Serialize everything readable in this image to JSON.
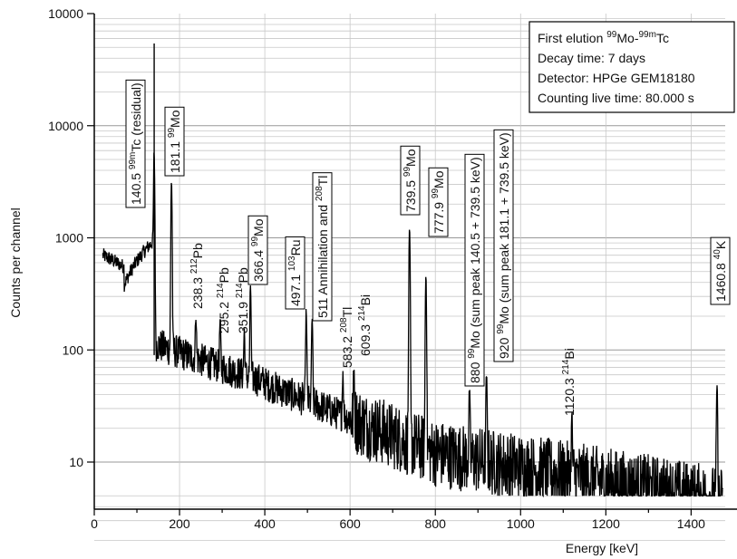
{
  "chart_data": {
    "type": "line",
    "title": "",
    "xlabel": "Energy [keV]",
    "ylabel": "Counts per channel",
    "xlim": [
      0,
      1480
    ],
    "ylim": [
      5,
      10000
    ],
    "y_scale": "log",
    "grid": true,
    "x_ticks": [
      "0",
      "200",
      "400",
      "600",
      "800",
      "1000",
      "1200",
      "1400"
    ],
    "y_ticks": [
      "10000",
      "10000",
      "1000",
      "100",
      "10"
    ],
    "info_box": {
      "position": "top-right",
      "lines": [
        {
          "main": "First elution ",
          "sup1": "99",
          "mid": "Mo-",
          "sup2": "99m",
          "end": "Tc"
        },
        {
          "main": "Decay time: 7 days"
        },
        {
          "main": "Detector: HPGe GEM18180"
        },
        {
          "main": "Counting live time: 80.000 s"
        }
      ]
    },
    "peaks": [
      {
        "energy": 140.5,
        "counts": 5200,
        "label": "140.5 ",
        "sup": "99m",
        "nuclide": "Tc (residual)",
        "boxed": true
      },
      {
        "energy": 181.1,
        "counts": 3100,
        "label": "181.1 ",
        "sup": "99",
        "nuclide": "Mo",
        "boxed": true
      },
      {
        "energy": 238.3,
        "counts": 125,
        "label": "238.3 ",
        "sup": "212",
        "nuclide": "Pb",
        "boxed": false
      },
      {
        "energy": 295.2,
        "counts": 110,
        "label": "295.2 ",
        "sup": "214",
        "nuclide": "Pb",
        "boxed": false
      },
      {
        "energy": 351.9,
        "counts": 90,
        "label": "351.9 ",
        "sup": "214",
        "nuclide": "Pb",
        "boxed": false
      },
      {
        "energy": 366.4,
        "counts": 320,
        "label": "366.4 ",
        "sup": "99",
        "nuclide": "Mo",
        "boxed": true
      },
      {
        "energy": 497.1,
        "counts": 190,
        "label": "497.1 ",
        "sup": "103",
        "nuclide": "Ru",
        "boxed": true
      },
      {
        "energy": 511,
        "counts": 160,
        "label": "511 Annihilation and ",
        "sup": "208",
        "nuclide": "Tl",
        "boxed": true
      },
      {
        "energy": 583.2,
        "counts": 38,
        "label": "583.2 ",
        "sup": "208",
        "nuclide": "Tl",
        "boxed": false
      },
      {
        "energy": 609.3,
        "counts": 42,
        "label": "609.3 ",
        "sup": "214",
        "nuclide": "Bi",
        "boxed": false
      },
      {
        "energy": 739.5,
        "counts": 1200,
        "label": "739.5 ",
        "sup": "99",
        "nuclide": "Mo",
        "boxed": true
      },
      {
        "energy": 777.9,
        "counts": 450,
        "label": "777.9 ",
        "sup": "99",
        "nuclide": "Mo",
        "boxed": true
      },
      {
        "energy": 880,
        "counts": 30,
        "label": "880 ",
        "sup": "99",
        "nuclide": "Mo (sum peak 140.5 + 739.5 keV)",
        "boxed": true
      },
      {
        "energy": 920,
        "counts": 50,
        "label": "920 ",
        "sup": "99",
        "nuclide": "Mo (sum peak 181.1 + 739.5 keV)",
        "boxed": true
      },
      {
        "energy": 1120.3,
        "counts": 17,
        "label": "1120.3 ",
        "sup": "214",
        "nuclide": "Bi",
        "boxed": false
      },
      {
        "energy": 1460.8,
        "counts": 45,
        "label": "1460.8 ",
        "sup": "40",
        "nuclide": "K",
        "boxed": true
      }
    ],
    "line_color": "#000000"
  }
}
